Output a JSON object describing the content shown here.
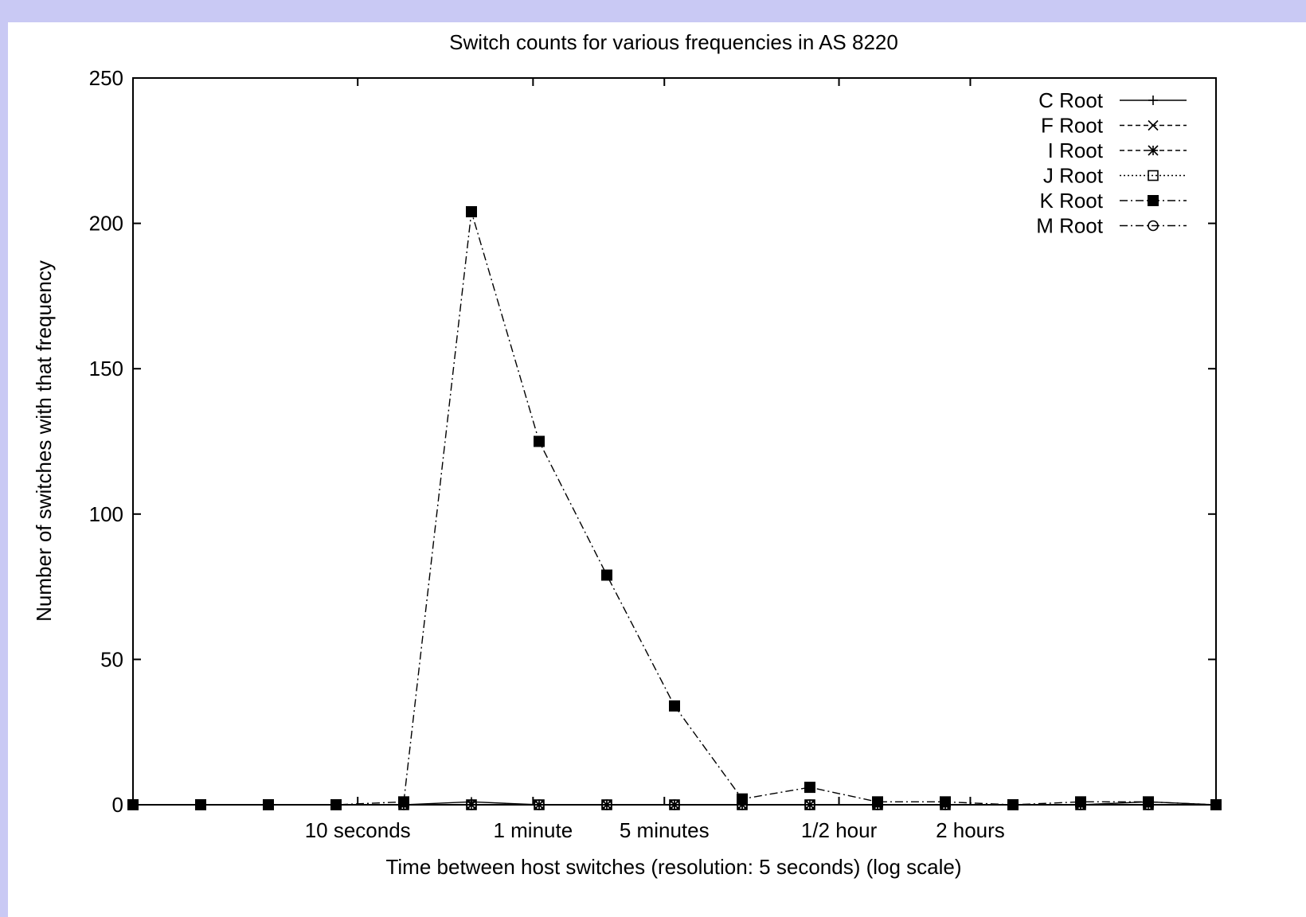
{
  "colors": {
    "page_border": "#c9c9f4",
    "plot_background": "#ffffff",
    "ink": "#000000"
  },
  "chart_data": {
    "type": "line",
    "title": "Switch counts for various frequencies in AS 8220",
    "xlabel": "Time between host switches (resolution: 5 seconds) (log scale)",
    "ylabel": "Number of switches with that frequency",
    "x_scale": "log",
    "ylim": [
      0,
      250
    ],
    "y_ticks": [
      0,
      50,
      100,
      150,
      200,
      250
    ],
    "x_tick_labels": [
      "10 seconds",
      "1 minute",
      "5 minutes",
      "1/2 hour",
      "2 hours"
    ],
    "legend_position": "top-right",
    "grid": false,
    "series": [
      {
        "name": "C Root",
        "marker": "plus",
        "dash": "solid",
        "values": [
          0,
          0,
          0,
          0,
          0,
          1,
          0,
          0,
          0,
          0,
          0,
          0,
          0,
          0,
          0,
          1,
          0
        ]
      },
      {
        "name": "F Root",
        "marker": "cross",
        "dash": "dashed",
        "values": [
          0,
          0,
          0,
          0,
          0,
          0,
          0,
          0,
          0,
          0,
          0,
          0,
          0,
          0,
          0,
          0,
          0
        ]
      },
      {
        "name": "I Root",
        "marker": "star",
        "dash": "dashed",
        "values": [
          0,
          0,
          0,
          0,
          0,
          0,
          0,
          0,
          0,
          0,
          0,
          0,
          0,
          0,
          0,
          0,
          0
        ]
      },
      {
        "name": "J Root",
        "marker": "open-square",
        "dash": "dotted",
        "values": [
          0,
          0,
          0,
          0,
          0,
          0,
          0,
          0,
          0,
          0,
          0,
          0,
          0,
          0,
          0,
          0,
          0
        ]
      },
      {
        "name": "K Root",
        "marker": "filled-square",
        "dash": "dash-dot",
        "values": [
          0,
          0,
          0,
          0,
          1,
          204,
          125,
          79,
          34,
          2,
          6,
          1,
          1,
          0,
          1,
          1,
          0
        ]
      },
      {
        "name": "M Root",
        "marker": "open-circle",
        "dash": "dash-dot",
        "values": [
          0,
          0,
          0,
          0,
          0,
          0,
          0,
          0,
          0,
          0,
          0,
          0,
          0,
          0,
          0,
          0,
          0
        ]
      }
    ]
  }
}
